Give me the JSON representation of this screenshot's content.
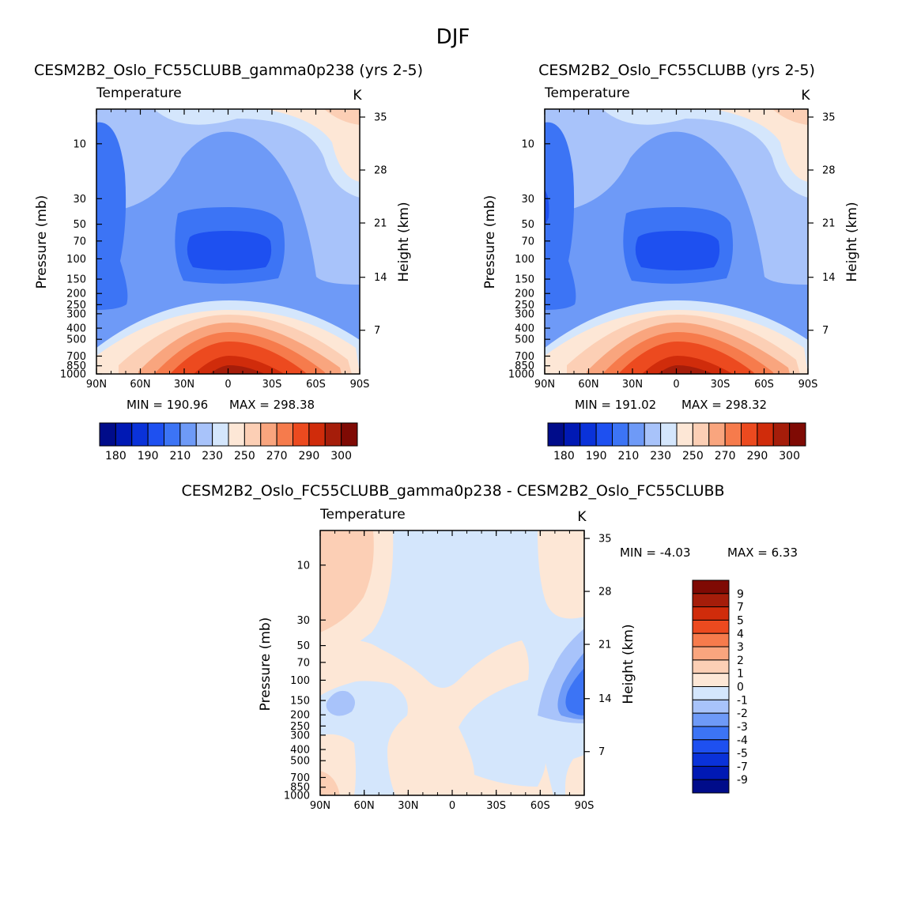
{
  "figure": {
    "title": "DJF",
    "diff_title": "CESM2B2_Oslo_FC55CLUBB_gamma0p238 - CESM2B2_Oslo_FC55CLUBB"
  },
  "chart_data": [
    {
      "type": "heatmap",
      "title": "CESM2B2_Oslo_FC55CLUBB_gamma0p238 (yrs 2-5)",
      "subtitle_left": "Temperature",
      "subtitle_right": "K",
      "ylabel": "Pressure (mb)",
      "ylabel_right": "Height (km)",
      "x_ticks": [
        "90N",
        "60N",
        "30N",
        "0",
        "30S",
        "60S",
        "90S"
      ],
      "y_ticks": [
        "10",
        "30",
        "50",
        "70",
        "100",
        "150",
        "200",
        "250",
        "300",
        "400",
        "500",
        "700",
        "850",
        "1000"
      ],
      "y_ticks_right": [
        "35",
        "28",
        "21",
        "14",
        "7"
      ],
      "min_text": "MIN = 190.96",
      "max_text": "MAX = 298.38",
      "min": 190.96,
      "max": 298.38,
      "colorbar_labels": [
        "180",
        "190",
        "210",
        "230",
        "250",
        "270",
        "290",
        "300"
      ]
    },
    {
      "type": "heatmap",
      "title": "CESM2B2_Oslo_FC55CLUBB (yrs 2-5)",
      "subtitle_left": "Temperature",
      "subtitle_right": "K",
      "ylabel": "Pressure (mb)",
      "ylabel_right": "Height (km)",
      "x_ticks": [
        "90N",
        "60N",
        "30N",
        "0",
        "30S",
        "60S",
        "90S"
      ],
      "y_ticks": [
        "10",
        "30",
        "50",
        "70",
        "100",
        "150",
        "200",
        "250",
        "300",
        "400",
        "500",
        "700",
        "850",
        "1000"
      ],
      "y_ticks_right": [
        "35",
        "28",
        "21",
        "14",
        "7"
      ],
      "min_text": "MIN = 191.02",
      "max_text": "MAX = 298.32",
      "min": 191.02,
      "max": 298.32,
      "colorbar_labels": [
        "180",
        "190",
        "210",
        "230",
        "250",
        "270",
        "290",
        "300"
      ]
    },
    {
      "type": "heatmap",
      "title": "",
      "subtitle_left": "Temperature",
      "subtitle_right": "K",
      "ylabel": "Pressure (mb)",
      "ylabel_right": "Height (km)",
      "x_ticks": [
        "90N",
        "60N",
        "30N",
        "0",
        "30S",
        "60S",
        "90S"
      ],
      "y_ticks": [
        "10",
        "30",
        "50",
        "70",
        "100",
        "150",
        "200",
        "250",
        "300",
        "400",
        "500",
        "700",
        "850",
        "1000"
      ],
      "y_ticks_right": [
        "35",
        "28",
        "21",
        "14",
        "7"
      ],
      "min_text": "MIN =   -4.03",
      "max_text": "MAX =    6.33",
      "min": -4.03,
      "max": 6.33,
      "colorbar_labels": [
        "9",
        "7",
        "5",
        "4",
        "3",
        "2",
        "1",
        "0",
        "-1",
        "-2",
        "-3",
        "-4",
        "-5",
        "-7",
        "-9"
      ]
    }
  ],
  "colors": {
    "abs_scale": [
      "#000c8a",
      "#0019b4",
      "#0a32d9",
      "#1e50f0",
      "#3c74f5",
      "#6e9af7",
      "#a8c3fa",
      "#d4e6fc",
      "#fde7d6",
      "#fccfb5",
      "#f9a57e",
      "#f67b4c",
      "#ec4a1f",
      "#d02c0b",
      "#a51d0a",
      "#7f0a04"
    ],
    "diff_scale": [
      "#7f0a04",
      "#a51d0a",
      "#d02c0b",
      "#ec4a1f",
      "#f67b4c",
      "#f9a57e",
      "#fccfb5",
      "#fde7d6",
      "#d4e6fc",
      "#a8c3fa",
      "#6e9af7",
      "#3c74f5",
      "#1e50f0",
      "#0a32d9",
      "#0019b4",
      "#000c8a"
    ]
  }
}
